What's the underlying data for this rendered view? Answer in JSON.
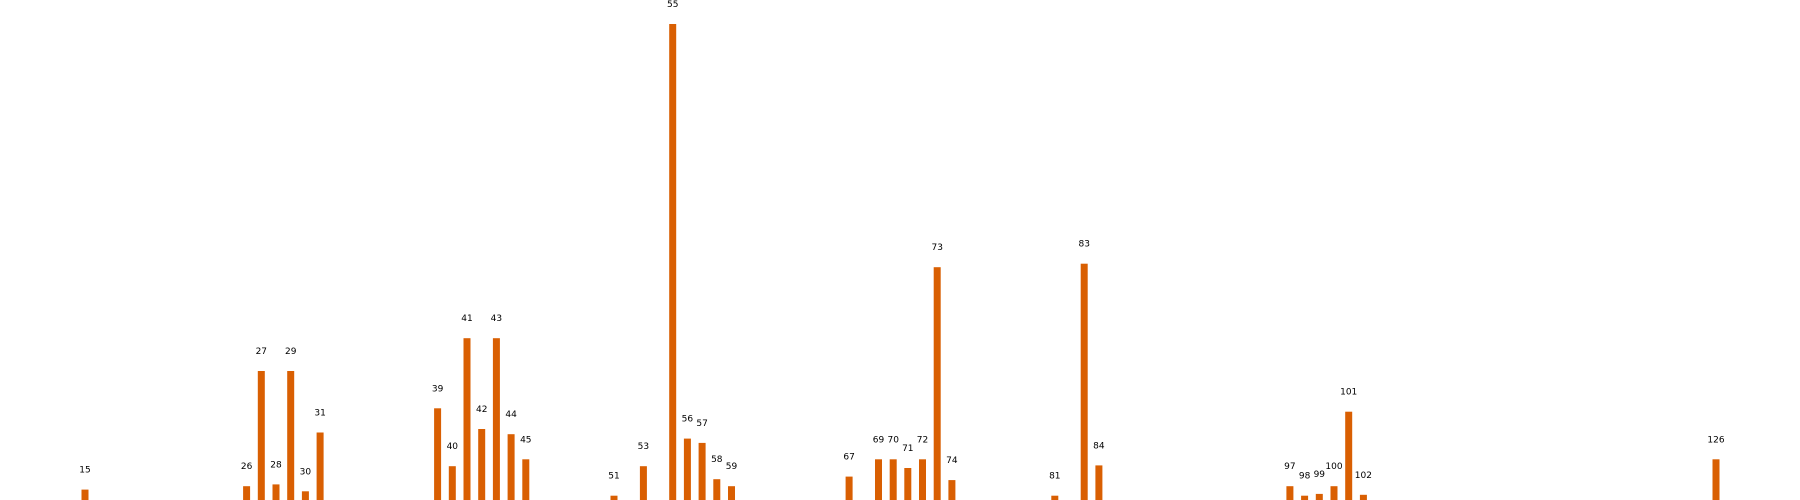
{
  "chart_data": {
    "type": "bar",
    "title": "",
    "xlabel": "",
    "ylabel": "",
    "grid": false,
    "axes_visible": false,
    "bar_color": "#d95f02",
    "categories": [
      "15",
      "26",
      "27",
      "28",
      "29",
      "30",
      "31",
      "39",
      "40",
      "41",
      "42",
      "43",
      "44",
      "45",
      "51",
      "53",
      "55",
      "56",
      "57",
      "58",
      "59",
      "67",
      "69",
      "70",
      "71",
      "72",
      "73",
      "74",
      "81",
      "83",
      "84",
      "97",
      "98",
      "99",
      "100",
      "101",
      "102",
      "126"
    ],
    "values": [
      1.2,
      1.6,
      14.9,
      1.8,
      14.9,
      1.0,
      7.8,
      10.6,
      3.9,
      18.7,
      8.2,
      18.7,
      7.6,
      4.7,
      0.5,
      3.9,
      55,
      7.1,
      6.6,
      2.4,
      1.6,
      2.7,
      4.7,
      4.7,
      3.7,
      4.7,
      26.9,
      2.3,
      0.5,
      27.3,
      4.0,
      1.6,
      0.5,
      0.7,
      1.6,
      10.2,
      0.6,
      4.7
    ],
    "ylim": [
      0,
      55
    ]
  }
}
